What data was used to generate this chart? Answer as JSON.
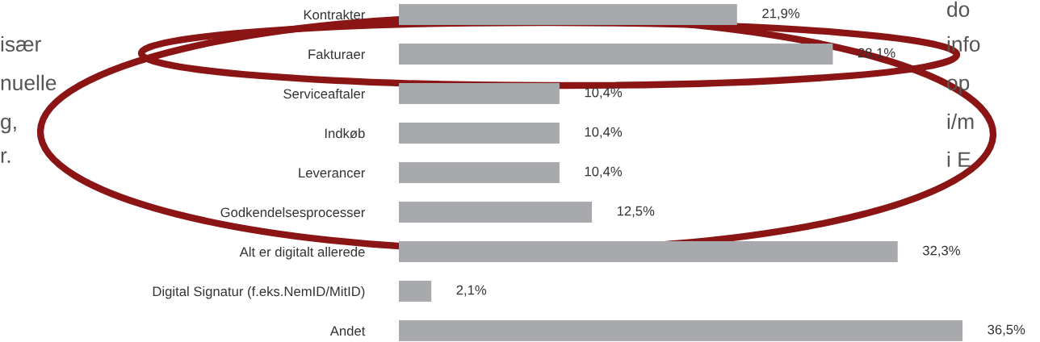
{
  "chart_data": {
    "type": "bar",
    "orientation": "horizontal",
    "categories": [
      "Kontrakter",
      "Fakturaer",
      "Serviceaftaler",
      "Indkøb",
      "Leverancer",
      "Godkendelsesprocesser",
      "Alt er digitalt allerede",
      "Digital Signatur (f.eks.NemID/MitID)",
      "Andet"
    ],
    "values": [
      21.9,
      28.1,
      10.4,
      10.4,
      10.4,
      12.5,
      32.3,
      2.1,
      36.5
    ],
    "value_labels": [
      "21,9%",
      "28,1%",
      "10,4%",
      "10,4%",
      "10,4%",
      "12,5%",
      "32,3%",
      "2,1%",
      "36,5%"
    ],
    "color": "#a7a9ac",
    "relative": false,
    "grid": false,
    "legend": false,
    "annotations": [
      "især",
      "nuelle",
      "g,",
      "r.",
      "do",
      "info",
      "op",
      "i/m",
      "i E"
    ]
  }
}
